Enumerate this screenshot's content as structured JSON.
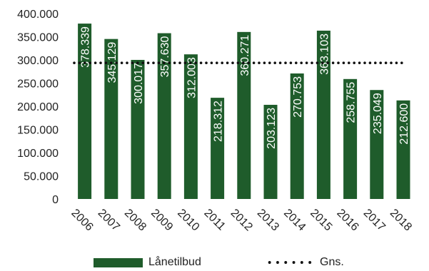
{
  "chart_data": {
    "type": "bar",
    "categories": [
      "2006",
      "2007",
      "2008",
      "2009",
      "2010",
      "2011",
      "2012",
      "2013",
      "2014",
      "2015",
      "2016",
      "2017",
      "2018"
    ],
    "series": [
      {
        "name": "Lånetilbud",
        "values": [
          378339,
          345129,
          300017,
          357630,
          312003,
          218312,
          360271,
          203123,
          270753,
          363103,
          258755,
          235049,
          212600
        ],
        "labels": [
          "378.339",
          "345.129",
          "300.017",
          "357.630",
          "312.003",
          "218.312",
          "360.271",
          "203.123",
          "270.753",
          "363.103",
          "258.755",
          "235.049",
          "212.600"
        ]
      },
      {
        "name": "Gns.",
        "type": "line",
        "style": "dotted",
        "value": 293500
      }
    ],
    "yticks": [
      "0",
      "50.000",
      "100.000",
      "150.000",
      "200.000",
      "250.000",
      "300.000",
      "350.000",
      "400.000"
    ],
    "ytick_values": [
      0,
      50000,
      100000,
      150000,
      200000,
      250000,
      300000,
      350000,
      400000
    ],
    "ylim": [
      0,
      400000
    ],
    "title": "",
    "xlabel": "",
    "ylabel": "",
    "grid": false,
    "legend_position": "bottom",
    "colors": {
      "bar": "#1f5c2b",
      "average_line": "#111111",
      "data_label": "#ffffff",
      "text": "#222222"
    }
  }
}
